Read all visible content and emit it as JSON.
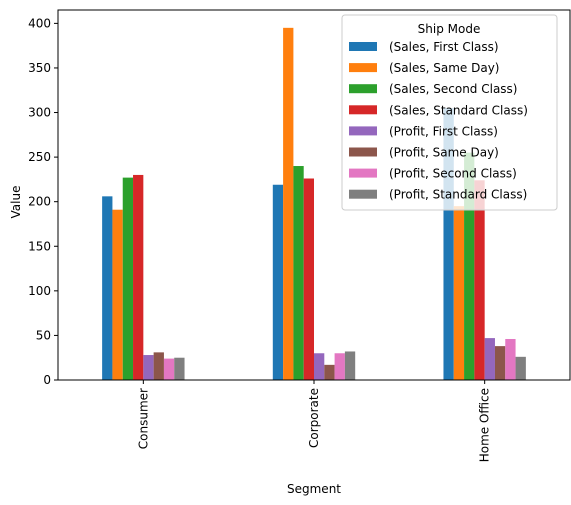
{
  "chart_data": {
    "type": "bar",
    "title": "",
    "xlabel": "Segment",
    "ylabel": "Value",
    "ylim": [
      0,
      415
    ],
    "yticks": [
      0,
      50,
      100,
      150,
      200,
      250,
      300,
      350,
      400
    ],
    "categories": [
      "Consumer",
      "Corporate",
      "Home Office"
    ],
    "legend_title": "Ship Mode",
    "legend_position": "top-right",
    "grid": false,
    "series": [
      {
        "name": "(Sales, First Class)",
        "color": "#1f77b4",
        "values": [
          206,
          219,
          305
        ]
      },
      {
        "name": "(Sales, Same Day)",
        "color": "#ff7f0e",
        "values": [
          191,
          395,
          195
        ]
      },
      {
        "name": "(Sales, Second Class)",
        "color": "#2ca02c",
        "values": [
          227,
          240,
          255
        ]
      },
      {
        "name": "(Sales, Standard Class)",
        "color": "#d62728",
        "values": [
          230,
          226,
          224
        ]
      },
      {
        "name": "(Profit, First Class)",
        "color": "#9467bd",
        "values": [
          28,
          30,
          47
        ]
      },
      {
        "name": "(Profit, Same Day)",
        "color": "#8c564b",
        "values": [
          31,
          17,
          38
        ]
      },
      {
        "name": "(Profit, Second Class)",
        "color": "#e377c2",
        "values": [
          24,
          30,
          46
        ]
      },
      {
        "name": "(Profit, Standard Class)",
        "color": "#7f7f7f",
        "values": [
          25,
          32,
          26
        ]
      }
    ]
  }
}
